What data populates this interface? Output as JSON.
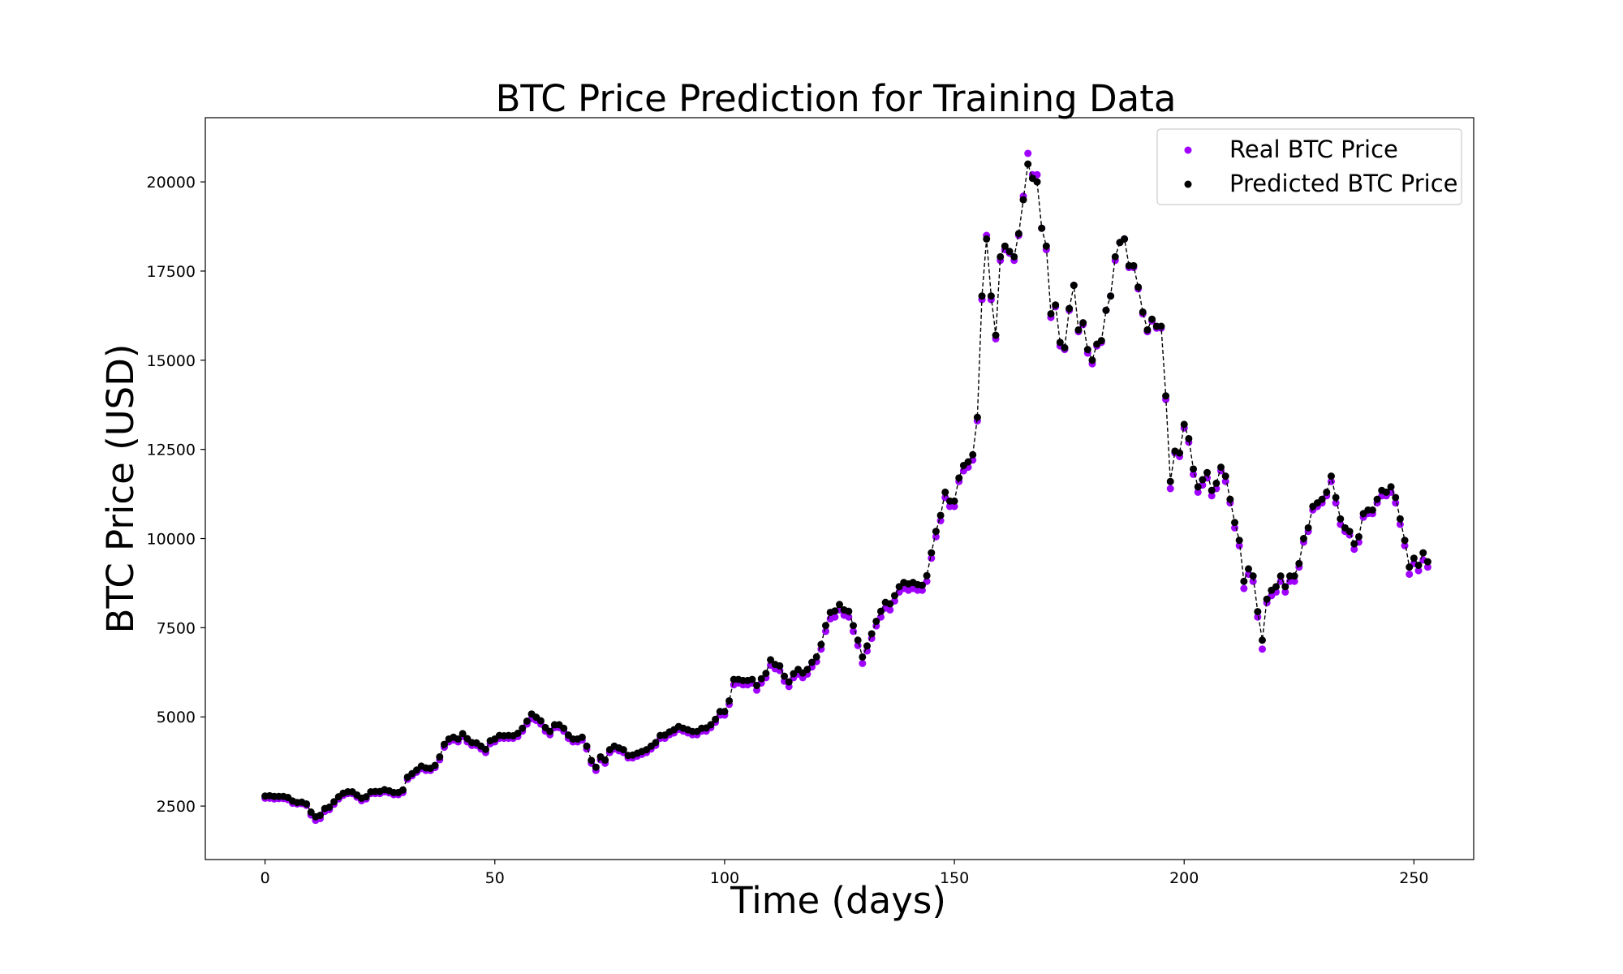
{
  "chart_data": {
    "type": "scatter",
    "title": "BTC Price Prediction for Training Data",
    "xlabel": "Time (days)",
    "ylabel": "BTC Price (USD)",
    "xlim": [
      -13,
      263
    ],
    "ylim": [
      1000,
      21800
    ],
    "xticks": [
      0,
      50,
      100,
      150,
      200,
      250
    ],
    "yticks": [
      2500,
      5000,
      7500,
      10000,
      12500,
      15000,
      17500,
      20000
    ],
    "grid": false,
    "legend_position": "top-right",
    "series": [
      {
        "name": "Real BTC Price",
        "color": "#a000ff",
        "marker": "circle",
        "values": [
          2720,
          2720,
          2700,
          2710,
          2710,
          2680,
          2580,
          2560,
          2570,
          2520,
          2250,
          2100,
          2150,
          2350,
          2400,
          2550,
          2700,
          2800,
          2850,
          2850,
          2750,
          2650,
          2700,
          2850,
          2850,
          2850,
          2900,
          2870,
          2820,
          2820,
          2880,
          3250,
          3350,
          3450,
          3550,
          3500,
          3500,
          3580,
          3800,
          4150,
          4300,
          4350,
          4300,
          4450,
          4300,
          4200,
          4200,
          4100,
          4000,
          4250,
          4300,
          4400,
          4400,
          4400,
          4400,
          4450,
          4600,
          4800,
          4950,
          4900,
          4800,
          4600,
          4500,
          4700,
          4700,
          4600,
          4400,
          4300,
          4300,
          4350,
          4100,
          3700,
          3500,
          3800,
          3700,
          4000,
          4100,
          4050,
          4000,
          3850,
          3850,
          3900,
          3950,
          4000,
          4100,
          4200,
          4400,
          4400,
          4500,
          4550,
          4650,
          4600,
          4550,
          4500,
          4500,
          4600,
          4600,
          4700,
          4850,
          5050,
          5050,
          5350,
          5900,
          5950,
          5900,
          5900,
          5950,
          5750,
          5950,
          6100,
          6450,
          6350,
          6300,
          6000,
          5850,
          6100,
          6200,
          6100,
          6200,
          6400,
          6550,
          6900,
          7400,
          7750,
          7800,
          8000,
          7850,
          7800,
          7400,
          7000,
          6500,
          6850,
          7200,
          7550,
          7800,
          8050,
          8000,
          8250,
          8500,
          8600,
          8550,
          8600,
          8550,
          8550,
          8800,
          9450,
          10050,
          10500,
          11150,
          10900,
          10900,
          11600,
          11900,
          12000,
          12200,
          13300,
          16700,
          18500,
          16700,
          15600,
          17800,
          18100,
          18000,
          17800,
          18500,
          19600,
          20800,
          20200,
          20200,
          18700,
          18100,
          16200,
          16500,
          15400,
          15300,
          16400,
          17100,
          15800,
          16000,
          15200,
          14900,
          15400,
          15500,
          16400,
          16800,
          17800,
          18300,
          18400,
          17600,
          17600,
          17000,
          16300,
          15800,
          16100,
          15900,
          15900,
          13900,
          11400,
          12400,
          12300,
          13100,
          12700,
          11800,
          11300,
          11500,
          11700,
          11200,
          11400,
          11900,
          11600,
          11000,
          10300,
          9800,
          8600,
          9000,
          8800,
          7800,
          6900,
          8200,
          8400,
          8500,
          8800,
          8500,
          8800,
          8800,
          9200,
          9900,
          10200,
          10800,
          10900,
          11000,
          11200,
          11600,
          11000,
          10400,
          10200,
          10100,
          9700,
          9900,
          10600,
          10700,
          10700,
          11000,
          11200,
          11200,
          11300,
          11000,
          10400,
          9800,
          9000,
          9300,
          9100,
          9400,
          9200
        ],
        "x_start": 0,
        "x_step": 1
      },
      {
        "name": "Predicted BTC Price",
        "color": "#000000",
        "marker": "circle",
        "line_style": "dashed",
        "values": [
          2780,
          2790,
          2770,
          2770,
          2770,
          2740,
          2640,
          2600,
          2610,
          2560,
          2330,
          2200,
          2240,
          2430,
          2470,
          2620,
          2760,
          2860,
          2900,
          2900,
          2810,
          2720,
          2760,
          2900,
          2910,
          2910,
          2960,
          2930,
          2880,
          2880,
          2950,
          3310,
          3410,
          3510,
          3620,
          3570,
          3560,
          3640,
          3880,
          4230,
          4380,
          4430,
          4380,
          4530,
          4390,
          4280,
          4270,
          4180,
          4090,
          4330,
          4380,
          4480,
          4470,
          4480,
          4470,
          4540,
          4680,
          4880,
          5080,
          4990,
          4890,
          4700,
          4590,
          4780,
          4780,
          4680,
          4490,
          4380,
          4380,
          4430,
          4180,
          3780,
          3590,
          3880,
          3790,
          4080,
          4180,
          4130,
          4080,
          3920,
          3930,
          3980,
          4030,
          4080,
          4180,
          4280,
          4480,
          4490,
          4580,
          4640,
          4730,
          4680,
          4640,
          4590,
          4590,
          4680,
          4690,
          4780,
          4930,
          5150,
          5150,
          5450,
          6050,
          6050,
          6020,
          6020,
          6050,
          5880,
          6070,
          6220,
          6600,
          6470,
          6430,
          6140,
          5980,
          6210,
          6330,
          6230,
          6330,
          6530,
          6680,
          7030,
          7560,
          7930,
          7970,
          8150,
          8000,
          7960,
          7560,
          7150,
          6680,
          6990,
          7330,
          7680,
          7960,
          8210,
          8170,
          8400,
          8650,
          8770,
          8730,
          8770,
          8710,
          8690,
          8960,
          9600,
          10200,
          10650,
          11300,
          11050,
          11050,
          11700,
          12050,
          12150,
          12350,
          13400,
          16800,
          18400,
          16800,
          15700,
          17900,
          18200,
          18050,
          17900,
          18550,
          19500,
          20500,
          20100,
          20000,
          18700,
          18200,
          16300,
          16550,
          15500,
          15350,
          16450,
          17100,
          15850,
          16050,
          15300,
          15000,
          15450,
          15550,
          16400,
          16800,
          17900,
          18300,
          18400,
          17650,
          17650,
          17050,
          16350,
          15850,
          16150,
          15950,
          15950,
          14000,
          11600,
          12450,
          12400,
          13200,
          12800,
          11950,
          11450,
          11650,
          11850,
          11350,
          11550,
          12000,
          11750,
          11100,
          10450,
          9950,
          8800,
          9150,
          8950,
          7950,
          7150,
          8300,
          8550,
          8650,
          8950,
          8650,
          8950,
          8950,
          9300,
          10000,
          10300,
          10900,
          11000,
          11100,
          11300,
          11750,
          11150,
          10550,
          10300,
          10200,
          9850,
          10050,
          10700,
          10800,
          10800,
          11100,
          11350,
          11300,
          11450,
          11150,
          10550,
          9950,
          9200,
          9450,
          9250,
          9600,
          9350
        ],
        "x_start": 0,
        "x_step": 1
      }
    ]
  }
}
